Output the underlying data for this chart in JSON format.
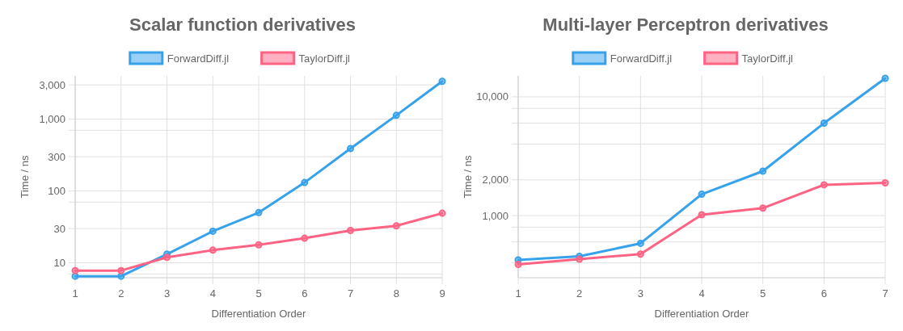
{
  "chart_data": [
    {
      "type": "line",
      "title": "Scalar function derivatives",
      "xlabel": "Differentiation Order",
      "ylabel": "Time / ns",
      "log": "y",
      "grid": true,
      "legend": "top",
      "marker": "circle",
      "line_style": "solid",
      "x": [
        1,
        2,
        3,
        4,
        5,
        6,
        7,
        8,
        9
      ],
      "xlim": [
        1,
        9
      ],
      "xticks": [
        1,
        2,
        3,
        4,
        5,
        6,
        7,
        8,
        9
      ],
      "ylim": [
        6.2,
        4000
      ],
      "yticks": [
        {
          "value": 7,
          "label": null
        },
        10,
        30,
        {
          "value": 70,
          "label": null
        },
        100,
        300,
        {
          "value": 700,
          "label": null
        },
        {
          "value": 1000,
          "label": "1,000"
        },
        {
          "value": 3000,
          "label": "3,000"
        }
      ],
      "series": [
        {
          "name": "ForwardDiff.jl",
          "color": "#36a2eb",
          "values": [
            6.5,
            6.5,
            13.2,
            27.5,
            50,
            131,
            390,
            1130,
            3360
          ]
        },
        {
          "name": "TaylorDiff.jl",
          "color": "#ff6384",
          "values": [
            7.8,
            7.8,
            11.9,
            15,
            17.8,
            22,
            28.2,
            32.7,
            49
          ]
        }
      ]
    },
    {
      "type": "line",
      "title": "Multi-layer Perceptron derivatives",
      "xlabel": "Differentiation Order",
      "ylabel": "Time / ns",
      "log": "y",
      "grid": true,
      "legend": "top",
      "marker": "circle",
      "line_style": "solid",
      "x": [
        1,
        2,
        3,
        4,
        5,
        6,
        7
      ],
      "xlim": [
        1,
        7
      ],
      "xticks": [
        1,
        2,
        3,
        4,
        5,
        6,
        7
      ],
      "ylim": [
        300,
        15000
      ],
      "yticks": [
        {
          "value": 400,
          "label": null
        },
        {
          "value": 600,
          "label": null
        },
        {
          "value": 800,
          "label": null
        },
        {
          "value": 1000,
          "label": "1,000"
        },
        {
          "value": 2000,
          "label": "2,000"
        },
        {
          "value": 4000,
          "label": null
        },
        {
          "value": 6000,
          "label": null
        },
        {
          "value": 8000,
          "label": null
        },
        {
          "value": 10000,
          "label": "10,000"
        }
      ],
      "series": [
        {
          "name": "ForwardDiff.jl",
          "color": "#36a2eb",
          "values": [
            423,
            454,
            584,
            1513,
            2366,
            6000,
            14300
          ]
        },
        {
          "name": "TaylorDiff.jl",
          "color": "#ff6384",
          "values": [
            388,
            430,
            474,
            1016,
            1156,
            1817,
            1887
          ]
        }
      ]
    }
  ]
}
